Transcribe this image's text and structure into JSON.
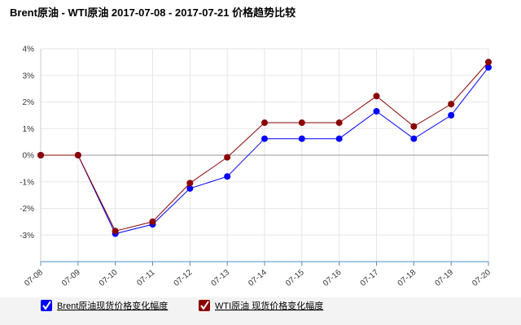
{
  "chart_data": {
    "type": "line",
    "title": "Brent原油 - WTI原油 2017-07-08 - 2017-07-21 价格趋势比较",
    "categories": [
      "07-08",
      "07-09",
      "07-10",
      "07-11",
      "07-12",
      "07-13",
      "07-14",
      "07-15",
      "07-16",
      "07-17",
      "07-18",
      "07-19",
      "07-20"
    ],
    "series": [
      {
        "name": "Brent原油现货价格变化幅度",
        "color": "#0000ff",
        "values": [
          0,
          0,
          -2.95,
          -2.6,
          -1.25,
          -0.8,
          0.62,
          0.62,
          0.62,
          1.65,
          0.62,
          1.5,
          3.3
        ]
      },
      {
        "name": "WTI原油 现货价格变化幅度",
        "color": "#8b0000",
        "values": [
          0,
          0,
          -2.85,
          -2.5,
          -1.05,
          -0.08,
          1.22,
          1.22,
          1.22,
          2.22,
          1.08,
          1.92,
          3.5
        ]
      }
    ],
    "ylim": [
      -4,
      4
    ],
    "yticks": [
      {
        "value": 4,
        "label": "4%"
      },
      {
        "value": 3,
        "label": "3%"
      },
      {
        "value": 2,
        "label": "2%"
      },
      {
        "value": 1,
        "label": "1%"
      },
      {
        "value": 0,
        "label": "0%"
      },
      {
        "value": -1,
        "label": "-1%"
      },
      {
        "value": -2,
        "label": "-2%"
      },
      {
        "value": -3,
        "label": "-3%"
      }
    ],
    "grid": true
  }
}
